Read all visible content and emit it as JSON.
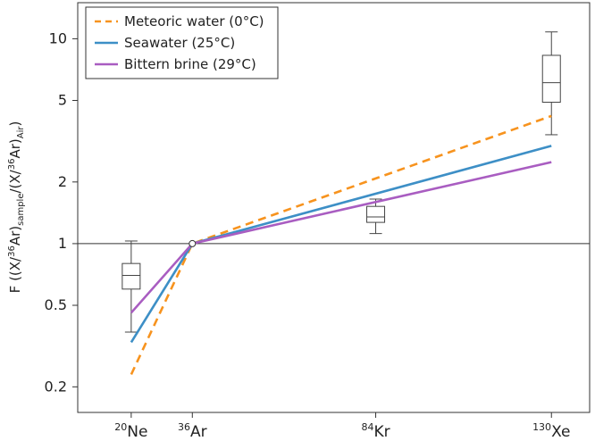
{
  "chart_data": {
    "type": "line",
    "title": "",
    "xlabel": "",
    "ylabel": {
      "prefix": "F ((X/",
      "sup1": "36",
      "mid1": "Ar)",
      "sub1": "sample",
      "mid2": "/(X/",
      "sup2": "36",
      "mid3": "Ar)",
      "sub2": "Air",
      "suffix": ")"
    },
    "y_scale": "log",
    "ylim": [
      0.15,
      15
    ],
    "y_ticks": [
      0.2,
      0.5,
      1,
      2,
      5,
      10
    ],
    "y_tick_labels": [
      "0.2",
      "0.5",
      "1",
      "2",
      "5",
      "10"
    ],
    "reference_line": 1,
    "categories": [
      {
        "mass": "20",
        "element": "Ne",
        "x": 20
      },
      {
        "mass": "36",
        "element": "Ar",
        "x": 36
      },
      {
        "mass": "84",
        "element": "Kr",
        "x": 84
      },
      {
        "mass": "130",
        "element": "Xe",
        "x": 130
      }
    ],
    "xlim": [
      6,
      140
    ],
    "series": [
      {
        "name": "Meteoric water (0°C)",
        "color": "#F7931E",
        "dash": true,
        "x": [
          20,
          36,
          130
        ],
        "y": [
          0.23,
          1,
          4.2
        ]
      },
      {
        "name": "Seawater (25°C)",
        "color": "#3D8FC6",
        "dash": false,
        "x": [
          20,
          36,
          130
        ],
        "y": [
          0.33,
          1,
          3.0
        ]
      },
      {
        "name": "Bittern brine (29°C)",
        "color": "#A95DC1",
        "dash": false,
        "x": [
          20,
          36,
          130
        ],
        "y": [
          0.46,
          1,
          2.5
        ]
      }
    ],
    "boxplots": [
      {
        "x": 20,
        "whisker_low": 0.37,
        "q1": 0.6,
        "median": 0.7,
        "q3": 0.8,
        "whisker_high": 1.03
      },
      {
        "x": 84,
        "whisker_low": 1.12,
        "q1": 1.27,
        "median": 1.35,
        "q3": 1.52,
        "whisker_high": 1.65
      },
      {
        "x": 130,
        "whisker_low": 3.4,
        "q1": 4.9,
        "median": 6.1,
        "q3": 8.3,
        "whisker_high": 10.8
      }
    ],
    "anchor_point": {
      "x": 36,
      "y": 1
    },
    "legend_position": "top-left",
    "grid": false
  }
}
